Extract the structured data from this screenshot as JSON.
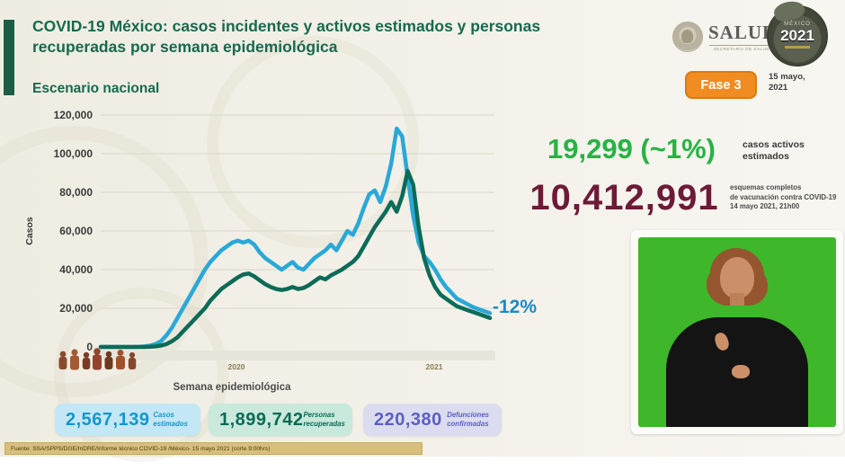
{
  "header": {
    "title_line1": "COVID-19 México: casos incidentes y activos estimados y personas",
    "title_line2": "recuperadas por semana epidemiológica",
    "subtitle": "Escenario nacional"
  },
  "branding": {
    "salud_wordmark": "SALUD",
    "salud_subtitle": "SECRETARÍA DE SALUD",
    "logo2021_country": "MÉXICO",
    "logo2021_year": "2021",
    "phase_badge": "Fase 3",
    "date_line1": "15 mayo,",
    "date_line2": "2021"
  },
  "chart_data": {
    "type": "line",
    "title": "Casos incidentes y activos estimados y personas recuperadas por semana epidemiológica — Escenario nacional",
    "xlabel": "Semana epidemiológica",
    "ylabel": "Casos",
    "ylim": [
      0,
      120000
    ],
    "grid": true,
    "legend_position": "none",
    "y_ticks": [
      0,
      20000,
      40000,
      60000,
      80000,
      100000,
      120000
    ],
    "y_tick_labels": [
      "0",
      "20,000",
      "40,000",
      "60,000",
      "80,000",
      "100,000",
      "120,000"
    ],
    "x_axis_year_labels": [
      "2020",
      "2021"
    ],
    "x_note": "weeks 1-53 of 2020 followed by weeks 1-19 of 2021",
    "annotation": "-12%",
    "annotation_color": "#1e88c7",
    "series": [
      {
        "name": "Casos incidentes estimados",
        "color": "#2aa8d8",
        "values": [
          0,
          0,
          0,
          0,
          0,
          0,
          0,
          100,
          300,
          700,
          1500,
          3000,
          6000,
          10000,
          15000,
          20000,
          25000,
          30000,
          35000,
          40000,
          44000,
          47000,
          50000,
          52000,
          54000,
          55000,
          54000,
          55000,
          53000,
          49000,
          46000,
          44000,
          42000,
          40000,
          42000,
          44000,
          41000,
          40000,
          43000,
          46000,
          48000,
          50000,
          53000,
          50000,
          55000,
          60000,
          58000,
          64000,
          72000,
          79000,
          81000,
          75000,
          83000,
          95000,
          113000,
          109000,
          88000,
          68000,
          54000,
          47000,
          44000,
          40000,
          35000,
          31000,
          28000,
          25000,
          23500,
          22000,
          20500,
          19500,
          18500,
          17500
        ]
      },
      {
        "name": "Personas recuperadas",
        "color": "#0c6b58",
        "values": [
          0,
          0,
          0,
          0,
          0,
          0,
          0,
          0,
          0,
          100,
          300,
          700,
          1500,
          3000,
          5000,
          8000,
          11000,
          14000,
          17000,
          20000,
          24000,
          27000,
          30000,
          32000,
          34000,
          36000,
          37500,
          38000,
          36500,
          34500,
          32500,
          31000,
          30000,
          29500,
          30000,
          31000,
          30000,
          30500,
          32000,
          34000,
          36000,
          35000,
          37000,
          38500,
          40000,
          42000,
          44000,
          47000,
          52000,
          57000,
          62000,
          66000,
          70000,
          75000,
          70000,
          78000,
          91000,
          84000,
          62000,
          46000,
          37000,
          31000,
          27000,
          25000,
          23000,
          21000,
          20000,
          19000,
          18000,
          17000,
          16000,
          15000
        ]
      }
    ]
  },
  "right_stats": {
    "active_value": "19,299 (~1%)",
    "active_label_line1": "casos activos",
    "active_label_line2": "estimados",
    "vaccination_value": "10,412,991",
    "vaccination_label_line1": "esquemas completos",
    "vaccination_label_line2": "de vacunación contra COVID-19",
    "vaccination_label_line3": "14 mayo 2021, 21h00"
  },
  "bottom_stats": {
    "cards": [
      {
        "value": "2,567,139",
        "label_line1": "Casos",
        "label_line2": "estimados",
        "bg": "#c3e7f4",
        "color": "#1496cd"
      },
      {
        "value": "1,899,742",
        "label_line1": "Personas",
        "label_line2": "recuperadas",
        "bg": "#c9e9dc",
        "color": "#0b6a55"
      },
      {
        "value": "220,380",
        "label_line1": "Defunciones",
        "label_line2": "confirmadas",
        "bg": "#dcdcf0",
        "color": "#5a60c0"
      }
    ]
  },
  "footer": {
    "source": "Fuente: SSA/SPPS/DGE/InDRE/Informe técnico COVID-19 /México- 15 mayo 2021 (corte 9:00hrs)"
  }
}
